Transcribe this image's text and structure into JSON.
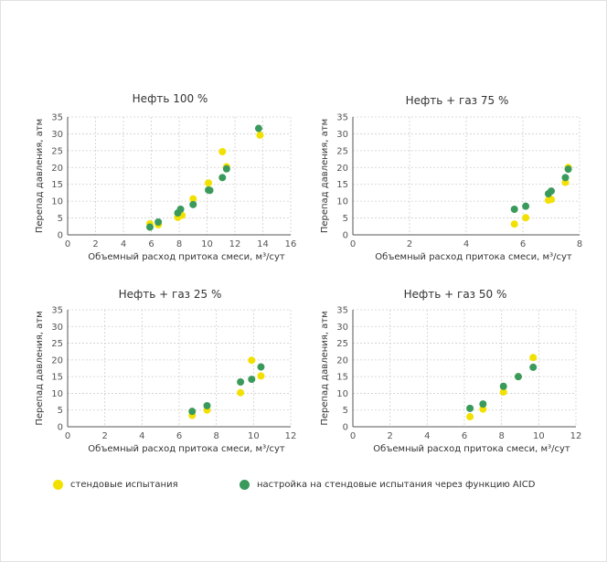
{
  "colors": {
    "yellow": "#f2e100",
    "green": "#3a9a5b",
    "grid": "#cfcfcf",
    "axis": "#555555"
  },
  "legend": {
    "yellow_label": "стендовые испытания",
    "green_label": "настройка на стендовые испытания через функцию AICD"
  },
  "chart_data": [
    {
      "type": "scatter",
      "title": "Нефть 100 %",
      "xlabel": "Объемный расход притока смеси, м³/сут",
      "ylabel": "Перепад давления, атм",
      "xlim": [
        0,
        16
      ],
      "ylim": [
        0,
        35
      ],
      "xticks": [
        0,
        2,
        4,
        6,
        8,
        10,
        12,
        14,
        16
      ],
      "yticks": [
        0,
        5,
        10,
        15,
        20,
        25,
        30,
        35
      ],
      "grid": true,
      "series": [
        {
          "name": "стендовые испытания",
          "color": "yellow",
          "points": [
            [
              5.9,
              3.3
            ],
            [
              6.5,
              3.0
            ],
            [
              7.9,
              5.2
            ],
            [
              8.2,
              5.8
            ],
            [
              9.0,
              10.7
            ],
            [
              10.1,
              15.4
            ],
            [
              11.1,
              24.7
            ],
            [
              11.4,
              20.2
            ],
            [
              13.8,
              29.6
            ]
          ]
        },
        {
          "name": "настройка на стендовые испытания через функцию AICD",
          "color": "green",
          "points": [
            [
              5.9,
              2.3
            ],
            [
              6.5,
              3.8
            ],
            [
              7.9,
              6.5
            ],
            [
              8.1,
              7.6
            ],
            [
              9.0,
              9.0
            ],
            [
              10.1,
              13.3
            ],
            [
              10.2,
              13.2
            ],
            [
              11.1,
              17.0
            ],
            [
              11.4,
              19.6
            ],
            [
              13.7,
              31.6
            ]
          ]
        }
      ]
    },
    {
      "type": "scatter",
      "title": "Нефть + газ 75 %",
      "xlabel": "Объемный расход притока смеси, м³/сут",
      "ylabel": "Перепад давления, атм",
      "xlim": [
        0,
        8
      ],
      "ylim": [
        0,
        35
      ],
      "xticks": [
        0,
        2,
        4,
        6,
        8
      ],
      "yticks": [
        0,
        5,
        10,
        15,
        20,
        25,
        30,
        35
      ],
      "grid": true,
      "series": [
        {
          "name": "стендовые испытания",
          "color": "yellow",
          "points": [
            [
              5.7,
              3.2
            ],
            [
              6.1,
              5.1
            ],
            [
              6.9,
              10.3
            ],
            [
              7.0,
              10.5
            ],
            [
              7.5,
              15.6
            ],
            [
              7.6,
              20.0
            ]
          ]
        },
        {
          "name": "настройка на стендовые испытания через функцию AICD",
          "color": "green",
          "points": [
            [
              5.7,
              7.6
            ],
            [
              6.1,
              8.5
            ],
            [
              6.9,
              12.2
            ],
            [
              7.0,
              13.0
            ],
            [
              7.5,
              17.0
            ],
            [
              7.6,
              19.5
            ]
          ]
        }
      ]
    },
    {
      "type": "scatter",
      "title": "Нефть + газ 25 %",
      "xlabel": "Объемный расход притока смеси, м³/сут",
      "ylabel": "Перепад давления, атм",
      "xlim": [
        0,
        12
      ],
      "ylim": [
        0,
        35
      ],
      "xticks": [
        0,
        2,
        4,
        6,
        8,
        10,
        12
      ],
      "yticks": [
        0,
        5,
        10,
        15,
        20,
        25,
        30,
        35
      ],
      "grid": true,
      "series": [
        {
          "name": "стендовые испытания",
          "color": "yellow",
          "points": [
            [
              6.7,
              3.4
            ],
            [
              7.5,
              5.0
            ],
            [
              9.3,
              10.2
            ],
            [
              9.9,
              19.9
            ],
            [
              10.4,
              15.2
            ]
          ]
        },
        {
          "name": "настройка на стендовые испытания через функцию AICD",
          "color": "green",
          "points": [
            [
              6.7,
              4.6
            ],
            [
              7.5,
              6.3
            ],
            [
              9.3,
              13.4
            ],
            [
              9.9,
              14.2
            ],
            [
              10.4,
              17.9
            ]
          ]
        }
      ]
    },
    {
      "type": "scatter",
      "title": "Нефть + газ 50 %",
      "xlabel": "Объемный расход притока смеси, м³/сут",
      "ylabel": "Перепад давления, атм",
      "xlim": [
        0,
        12
      ],
      "ylim": [
        0,
        35
      ],
      "xticks": [
        0,
        2,
        4,
        6,
        8,
        10,
        12
      ],
      "yticks": [
        0,
        5,
        10,
        15,
        20,
        25,
        30,
        35
      ],
      "grid": true,
      "series": [
        {
          "name": "стендовые испытания",
          "color": "yellow",
          "points": [
            [
              6.3,
              3.0
            ],
            [
              7.0,
              5.3
            ],
            [
              8.1,
              10.4
            ],
            [
              8.9,
              15.0
            ],
            [
              9.7,
              20.7
            ]
          ]
        },
        {
          "name": "настройка на стендовые испытания через функцию AICD",
          "color": "green",
          "points": [
            [
              6.3,
              5.5
            ],
            [
              7.0,
              6.8
            ],
            [
              8.1,
              12.1
            ],
            [
              8.9,
              15.0
            ],
            [
              9.7,
              17.8
            ]
          ]
        }
      ]
    }
  ]
}
